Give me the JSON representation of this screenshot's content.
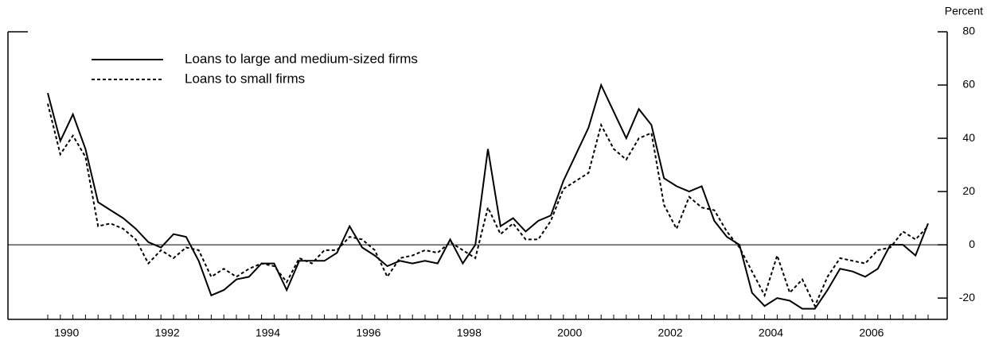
{
  "chart_data": {
    "type": "line",
    "y_axis_label": "Percent",
    "categories": [
      "1990",
      null,
      null,
      null,
      null,
      null,
      null,
      null,
      "1992",
      null,
      null,
      null,
      null,
      null,
      null,
      null,
      "1994",
      null,
      null,
      null,
      null,
      null,
      null,
      null,
      "1996",
      null,
      null,
      null,
      null,
      null,
      null,
      null,
      "1998",
      null,
      null,
      null,
      null,
      null,
      null,
      null,
      "2000",
      null,
      null,
      null,
      null,
      null,
      null,
      null,
      "2002",
      null,
      null,
      null,
      null,
      null,
      null,
      null,
      "2004",
      null,
      null,
      null,
      null,
      null,
      null,
      null,
      "2006",
      null,
      null,
      null,
      null,
      null,
      null
    ],
    "series": [
      {
        "name": "Loans to large and medium-sized firms",
        "color": "#000000",
        "dash": "solid",
        "values": [
          57,
          39,
          49,
          36,
          16,
          13,
          10,
          6,
          1,
          -1,
          4,
          3,
          -6,
          -19,
          -17,
          -13,
          -12,
          -7,
          -7,
          -17,
          -6,
          -6,
          -6,
          -3,
          7,
          -1,
          -4,
          -8,
          -6,
          -7,
          -6,
          -7,
          2,
          -7,
          0,
          36,
          7,
          10,
          5,
          9,
          11,
          24,
          34,
          44,
          60,
          50,
          40,
          51,
          45,
          25,
          22,
          20,
          22,
          9,
          3,
          0,
          -18,
          -23,
          -20,
          -21,
          -24,
          -24,
          -17,
          -9,
          -10,
          -12,
          -9,
          0,
          0,
          -4,
          8
        ]
      },
      {
        "name": "Loans to small firms",
        "color": "#000000",
        "dash": "dashed",
        "values": [
          53,
          34,
          41,
          33,
          7,
          8,
          6,
          2,
          -7,
          -2,
          -5,
          -1,
          -2,
          -12,
          -9,
          -12,
          -9,
          -7,
          -8,
          -14,
          -5,
          -7,
          -2,
          -2,
          3,
          2,
          -2,
          -12,
          -5,
          -4,
          -2,
          -3,
          1,
          -2,
          -5,
          14,
          4,
          8,
          2,
          2,
          9,
          21,
          24,
          27,
          45,
          36,
          32,
          40,
          42,
          15,
          6,
          18,
          14,
          13,
          5,
          -1,
          -10,
          -19,
          -4,
          -18,
          -13,
          -23,
          -12,
          -5,
          -6,
          -7,
          -2,
          -1,
          5,
          2,
          7
        ]
      }
    ],
    "ylim": [
      -28,
      80
    ],
    "yticks": [
      -20,
      0,
      20,
      40,
      60,
      80
    ],
    "zero_line": true,
    "legend": "upper left"
  }
}
